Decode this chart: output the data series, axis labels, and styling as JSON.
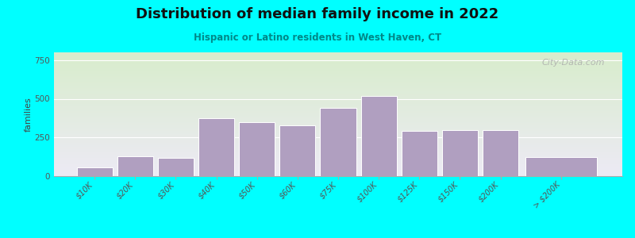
{
  "title": "Distribution of median family income in 2022",
  "subtitle": "Hispanic or Latino residents in West Haven, CT",
  "categories": [
    "$10K",
    "$20K",
    "$30K",
    "$40K",
    "$50K",
    "$60K",
    "$75K",
    "$100K",
    "$125K",
    "$150K",
    "$200K",
    "> $200K"
  ],
  "bar_heights": [
    55,
    130,
    120,
    375,
    350,
    330,
    440,
    520,
    290,
    300,
    295,
    125
  ],
  "bar_color": "#b09fc0",
  "bar_edge_color": "#ffffff",
  "background_outer": "#00ffff",
  "background_top_left": "#d8edcc",
  "background_top_right": "#eaf5f0",
  "background_bottom": "#ede8f5",
  "ylabel": "families",
  "ylim": [
    0,
    800
  ],
  "yticks": [
    0,
    250,
    500,
    750
  ],
  "watermark": "City-Data.com",
  "title_fontsize": 13,
  "subtitle_fontsize": 9,
  "bar_widths": [
    1,
    1,
    1,
    1,
    1,
    1,
    1,
    1,
    1,
    1,
    1,
    2
  ]
}
